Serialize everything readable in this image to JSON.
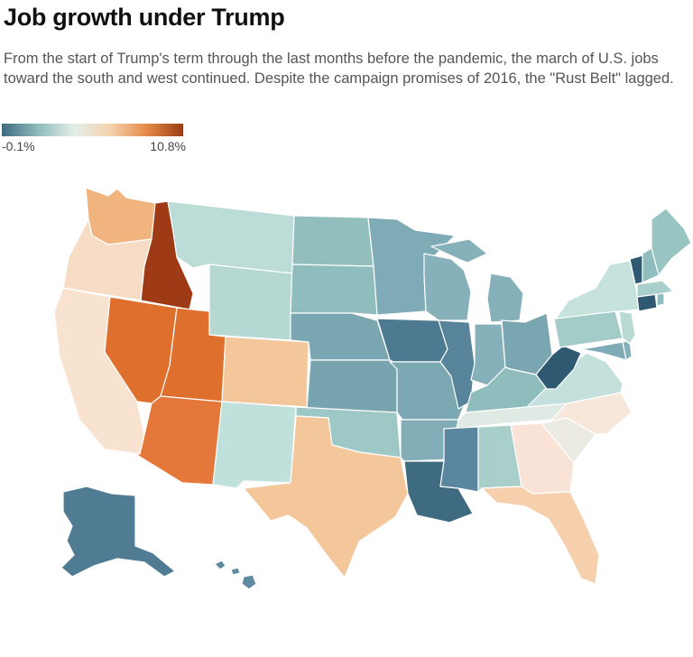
{
  "title": "Job growth under Trump",
  "subtitle": "From the start of Trump's term through the last months before the pandemic, the march of U.S. jobs toward the south and west continued. Despite the campaign promises of 2016, the \"Rust Belt\" lagged.",
  "legend": {
    "min_label": "-0.1%",
    "max_label": "10.8%",
    "min": -0.1,
    "max": 10.8,
    "stops": [
      "#3e6a80",
      "#8fbcbc",
      "#e4eee8",
      "#f6d2ae",
      "#e58a46",
      "#9a3a16"
    ]
  },
  "colors": {
    "darkest_teal": "#3d687e",
    "teal": "#6f9aa8",
    "light_teal": "#a9cfcb",
    "pale": "#dfeae4",
    "peach": "#f6dcc4",
    "tan": "#f4c79b",
    "orange": "#df6f2d",
    "brown": "#9e3a15"
  }
}
